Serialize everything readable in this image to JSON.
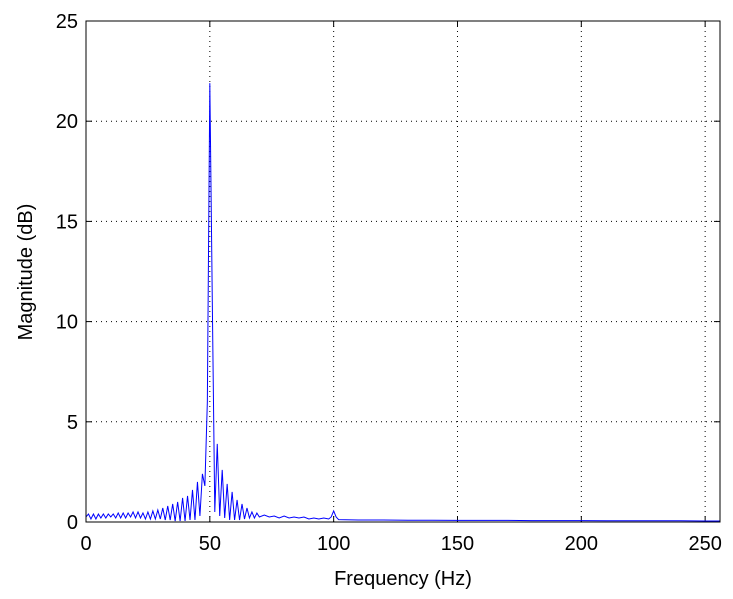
{
  "chart_data": {
    "type": "line",
    "xlabel": "Frequency (Hz)",
    "ylabel": "Magnitude (dB)",
    "color": "#0000ff",
    "xlim": [
      0,
      256
    ],
    "ylim": [
      0,
      25
    ],
    "xticks": [
      0,
      50,
      100,
      150,
      200,
      250
    ],
    "yticks": [
      0,
      5,
      10,
      15,
      20,
      25
    ],
    "grid": true,
    "x": [
      0,
      1,
      2,
      3,
      4,
      5,
      6,
      7,
      8,
      9,
      10,
      11,
      12,
      13,
      14,
      15,
      16,
      17,
      18,
      19,
      20,
      21,
      22,
      23,
      24,
      25,
      26,
      27,
      28,
      29,
      30,
      31,
      32,
      33,
      34,
      35,
      36,
      37,
      38,
      39,
      40,
      41,
      42,
      43,
      44,
      45,
      46,
      47,
      48,
      49,
      50,
      51,
      52,
      53,
      54,
      55,
      56,
      57,
      58,
      59,
      60,
      61,
      62,
      63,
      64,
      65,
      66,
      67,
      68,
      69,
      70,
      72,
      74,
      76,
      78,
      80,
      82,
      84,
      86,
      88,
      90,
      92,
      94,
      96,
      98,
      99,
      100,
      101,
      102,
      110,
      120,
      130,
      140,
      150,
      160,
      170,
      180,
      190,
      200,
      210,
      220,
      230,
      240,
      250,
      256
    ],
    "values": [
      0.25,
      0.4,
      0.15,
      0.4,
      0.15,
      0.4,
      0.2,
      0.4,
      0.2,
      0.4,
      0.25,
      0.4,
      0.2,
      0.45,
      0.2,
      0.45,
      0.2,
      0.45,
      0.25,
      0.5,
      0.2,
      0.5,
      0.2,
      0.45,
      0.15,
      0.5,
      0.15,
      0.55,
      0.15,
      0.6,
      0.15,
      0.7,
      0.1,
      0.8,
      0.1,
      0.9,
      0.05,
      1.0,
      0.05,
      1.2,
      0.05,
      1.3,
      0.1,
      1.6,
      0.1,
      2.0,
      0.3,
      2.4,
      1.8,
      6,
      21.9,
      11,
      0.5,
      3.9,
      0.3,
      2.6,
      0.2,
      1.9,
      0.1,
      1.5,
      0.1,
      1.1,
      0.1,
      0.9,
      0.15,
      0.7,
      0.2,
      0.5,
      0.2,
      0.45,
      0.25,
      0.35,
      0.25,
      0.3,
      0.2,
      0.3,
      0.2,
      0.25,
      0.2,
      0.25,
      0.15,
      0.2,
      0.15,
      0.2,
      0.15,
      0.25,
      0.55,
      0.25,
      0.12,
      0.1,
      0.1,
      0.09,
      0.09,
      0.08,
      0.08,
      0.08,
      0.07,
      0.07,
      0.07,
      0.06,
      0.06,
      0.06,
      0.06,
      0.05,
      0.05
    ]
  }
}
